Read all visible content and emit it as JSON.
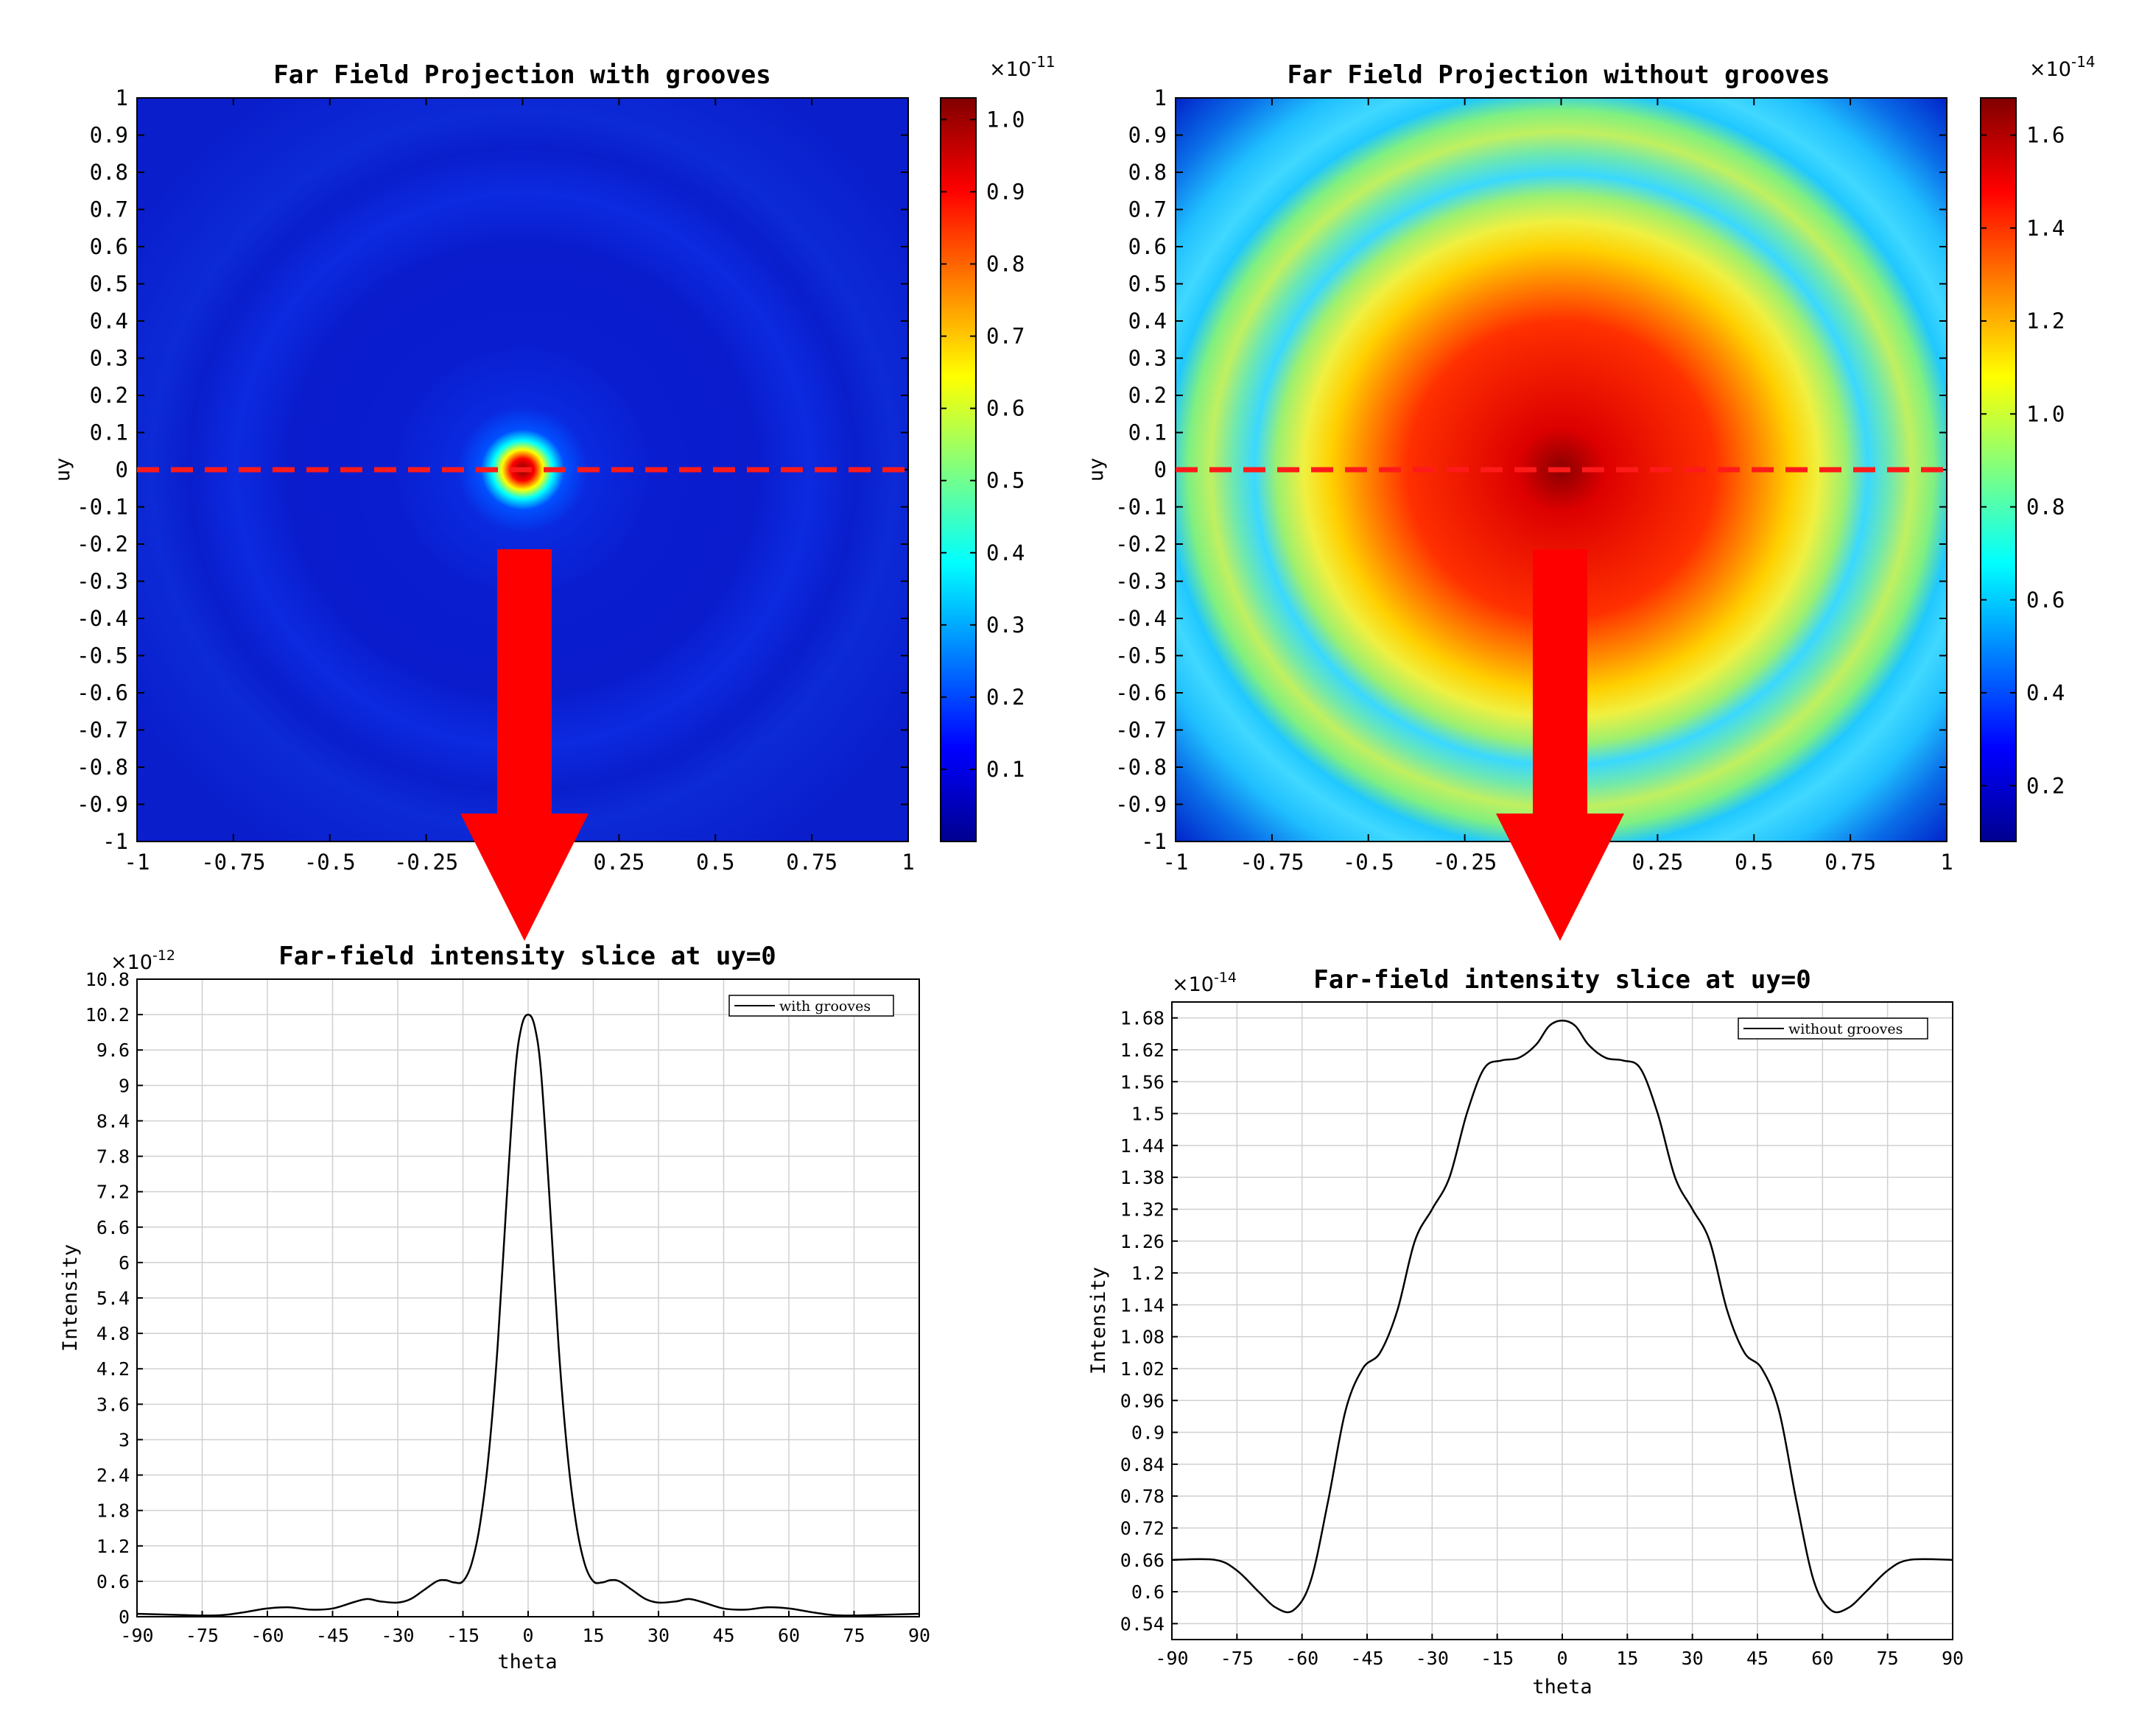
{
  "colors": {
    "dashed_line": "#ff1a1a",
    "arrow": "#ff0000",
    "curve": "#000000"
  },
  "chart_data": [
    {
      "type": "heatmap",
      "title": "Far Field Projection with grooves",
      "xlabel": "",
      "ylabel": "uy",
      "xlim": [
        -1,
        1
      ],
      "ylim": [
        -1,
        1
      ],
      "x_ticks": [
        "-1",
        "-0.75",
        "-0.5",
        "-0.25",
        "0",
        "0.25",
        "0.5",
        "0.75",
        "1"
      ],
      "y_ticks": [
        "1",
        "0.9",
        "0.8",
        "0.7",
        "0.6",
        "0.5",
        "0.4",
        "0.3",
        "0.2",
        "0.1",
        "0",
        "-0.1",
        "-0.2",
        "-0.3",
        "-0.4",
        "-0.5",
        "-0.6",
        "-0.7",
        "-0.8",
        "-0.9",
        "-1"
      ],
      "colorbar": {
        "multiplier": "×10",
        "exponent": "-11",
        "ticks": [
          "1.0",
          "0.9",
          "0.8",
          "0.7",
          "0.6",
          "0.5",
          "0.4",
          "0.3",
          "0.2",
          "0.1"
        ],
        "min": 0.0,
        "max": 1.03
      },
      "pattern": "narrow central spot, faint rings"
    },
    {
      "type": "heatmap",
      "title": "Far Field Projection without grooves",
      "xlabel": "",
      "ylabel": "uy",
      "xlim": [
        -1,
        1
      ],
      "ylim": [
        -1,
        1
      ],
      "x_ticks": [
        "-1",
        "-0.75",
        "-0.5",
        "-0.25",
        "0",
        "0.25",
        "0.5",
        "0.75",
        "1"
      ],
      "y_ticks": [
        "1",
        "0.9",
        "0.8",
        "0.7",
        "0.6",
        "0.5",
        "0.4",
        "0.3",
        "0.2",
        "0.1",
        "0",
        "-0.1",
        "-0.2",
        "-0.3",
        "-0.4",
        "-0.5",
        "-0.6",
        "-0.7",
        "-0.8",
        "-0.9",
        "-1"
      ],
      "colorbar": {
        "multiplier": "×10",
        "exponent": "-14",
        "ticks": [
          "1.6",
          "1.4",
          "1.2",
          "1.0",
          "0.8",
          "0.6",
          "0.4",
          "0.2"
        ],
        "min": 0.08,
        "max": 1.68
      },
      "pattern": "broad central lobe with concentric rings"
    },
    {
      "type": "line",
      "title": "Far-field intensity slice at uy=0",
      "xlabel": "theta",
      "ylabel": "Intensity",
      "multiplier": "×10",
      "exponent": "-12",
      "xlim": [
        -90,
        90
      ],
      "ylim": [
        0,
        10.8
      ],
      "x_ticks": [
        "-90",
        "-75",
        "-60",
        "-45",
        "-30",
        "-15",
        "0",
        "15",
        "30",
        "45",
        "60",
        "75",
        "90"
      ],
      "y_ticks": [
        "10.8",
        "10.2",
        "9.6",
        "9",
        "8.4",
        "7.8",
        "7.2",
        "6.6",
        "6",
        "5.4",
        "4.8",
        "4.2",
        "3.6",
        "3",
        "2.4",
        "1.8",
        "1.2",
        "0.6",
        "0"
      ],
      "legend": "with grooves",
      "series": [
        {
          "name": "with grooves",
          "x": [
            -90,
            -80,
            -75,
            -70,
            -65,
            -60,
            -55,
            -50,
            -45,
            -40,
            -37,
            -34,
            -30,
            -27,
            -24,
            -21,
            -19,
            -17,
            -15,
            -13,
            -11,
            -9,
            -7,
            -5,
            -3,
            -1.5,
            0,
            1.5,
            3,
            5,
            7,
            9,
            11,
            13,
            15,
            17,
            19,
            21,
            24,
            27,
            30,
            34,
            37,
            40,
            45,
            50,
            55,
            60,
            65,
            70,
            75,
            80,
            90
          ],
          "y": [
            0.05,
            0.03,
            0.02,
            0.03,
            0.08,
            0.14,
            0.16,
            0.12,
            0.14,
            0.25,
            0.3,
            0.26,
            0.24,
            0.3,
            0.45,
            0.6,
            0.62,
            0.58,
            0.6,
            0.9,
            1.6,
            2.8,
            4.6,
            7.0,
            9.2,
            10.0,
            10.2,
            10.0,
            9.2,
            7.0,
            4.6,
            2.8,
            1.6,
            0.9,
            0.6,
            0.58,
            0.62,
            0.6,
            0.45,
            0.3,
            0.24,
            0.26,
            0.3,
            0.25,
            0.14,
            0.12,
            0.16,
            0.14,
            0.08,
            0.03,
            0.02,
            0.03,
            0.05
          ]
        }
      ]
    },
    {
      "type": "line",
      "title": "Far-field intensity slice at uy=0",
      "xlabel": "theta",
      "ylabel": "Intensity",
      "multiplier": "×10",
      "exponent": "-14",
      "xlim": [
        -90,
        90
      ],
      "ylim": [
        0.51,
        1.71
      ],
      "x_ticks": [
        "-90",
        "-75",
        "-60",
        "-45",
        "-30",
        "-15",
        "0",
        "15",
        "30",
        "45",
        "60",
        "75",
        "90"
      ],
      "y_ticks": [
        "1.68",
        "1.62",
        "1.56",
        "1.5",
        "1.44",
        "1.38",
        "1.32",
        "1.26",
        "1.2",
        "1.14",
        "1.08",
        "1.02",
        "0.96",
        "0.9",
        "0.84",
        "0.78",
        "0.72",
        "0.66",
        "0.6",
        "0.54"
      ],
      "legend": "without grooves",
      "series": [
        {
          "name": "without grooves",
          "x": [
            -90,
            -80,
            -75,
            -70,
            -66,
            -62,
            -58,
            -54,
            -50,
            -46,
            -42,
            -38,
            -34,
            -30,
            -26,
            -22,
            -18,
            -14,
            -10,
            -6,
            -3,
            0,
            3,
            6,
            10,
            14,
            18,
            22,
            26,
            30,
            34,
            38,
            42,
            46,
            50,
            54,
            58,
            62,
            66,
            70,
            75,
            80,
            90
          ],
          "y": [
            0.66,
            0.66,
            0.64,
            0.6,
            0.57,
            0.565,
            0.62,
            0.77,
            0.94,
            1.02,
            1.05,
            1.13,
            1.26,
            1.32,
            1.38,
            1.5,
            1.585,
            1.6,
            1.605,
            1.63,
            1.665,
            1.675,
            1.665,
            1.63,
            1.605,
            1.6,
            1.585,
            1.5,
            1.38,
            1.32,
            1.26,
            1.13,
            1.05,
            1.02,
            0.94,
            0.77,
            0.62,
            0.565,
            0.57,
            0.6,
            0.64,
            0.66,
            0.66
          ]
        }
      ]
    }
  ]
}
